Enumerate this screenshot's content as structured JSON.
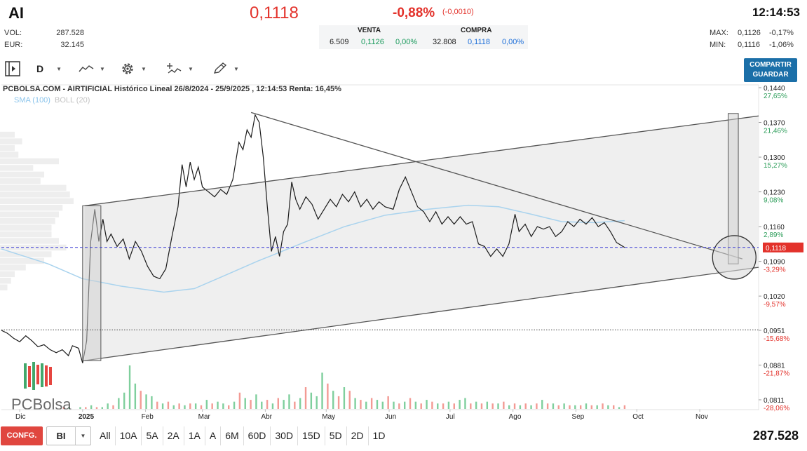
{
  "header": {
    "ticker": "AI",
    "price": "0,1118",
    "change_pct": "-0,88%",
    "change_abs": "(-0,0010)",
    "time": "12:14:53",
    "vol_label": "VOL:",
    "vol_value": "287.528",
    "eur_label": "EUR:",
    "eur_value": "32.145"
  },
  "quote": {
    "venta_label": "VENTA",
    "compra_label": "COMPRA",
    "sell_qty": "6.509",
    "sell_price": "0,1126",
    "sell_pct": "0,00%",
    "buy_qty": "32.808",
    "buy_price": "0,1118",
    "buy_pct": "0,00%"
  },
  "range_stats": {
    "max_label": "MAX:",
    "max_value": "0,1126",
    "max_pct": "-0,17%",
    "min_label": "MIN:",
    "min_value": "0,1116",
    "min_pct": "-1,06%"
  },
  "toolbar": {
    "period": "D",
    "share_line1": "COMPARTIR",
    "share_line2": "GUARDAR"
  },
  "chart_title": "PCBOLSA.COM - AIRTIFICIAL Histórico Lineal 26/8/2024 - 25/9/2025 , 12:14:53 Renta: 16,45%",
  "indicators": {
    "sma": "SMA (100)",
    "boll": "BOLL (20)"
  },
  "watermark": "PCBolsa",
  "colors": {
    "price_line": "#1a1a1a",
    "sma": "#a9d3ee",
    "up": "#2e9e5b",
    "down": "#e3322b",
    "channel_fill": "#ececec",
    "current_price_line": "#3b3bd6",
    "current_price_tag": "#e3322b"
  },
  "bottom": {
    "config_label": "CONFG.",
    "interval_value": "BI",
    "ranges": [
      "All",
      "10A",
      "5A",
      "2A",
      "1A",
      "A",
      "6M",
      "60D",
      "30D",
      "15D",
      "5D",
      "2D",
      "1D"
    ],
    "volume_total": "287.528"
  },
  "chart_data": {
    "type": "line",
    "title": "PCBOLSA.COM - AIRTIFICIAL Histórico Lineal 26/8/2024 - 25/9/2025 , 12:14:53 Renta: 16,45%",
    "x_tick_labels": [
      "Dic",
      "2025",
      "Feb",
      "Mar",
      "Abr",
      "May",
      "Jun",
      "Jul",
      "Ago",
      "Sep",
      "Oct",
      "Nov"
    ],
    "y_ticks": [
      {
        "price": "0,1440",
        "pct": "27,65%"
      },
      {
        "price": "0,1370",
        "pct": "21,46%"
      },
      {
        "price": "0,1300",
        "pct": "15,27%"
      },
      {
        "price": "0,1230",
        "pct": "9,08%"
      },
      {
        "price": "0,1160",
        "pct": "2,89%"
      },
      {
        "price": "0,1090",
        "pct": "-3,29%"
      },
      {
        "price": "0,1020",
        "pct": "-9,57%"
      },
      {
        "price": "0,0951",
        "pct": "-15,68%"
      },
      {
        "price": "0,0881",
        "pct": "-21,87%"
      },
      {
        "price": "0,0811",
        "pct": "-28,06%"
      }
    ],
    "ylim": [
      0.0811,
      0.144
    ],
    "xlim": [
      "2024-11-22",
      "2025-11-30"
    ],
    "current_price": 0.1118,
    "current_price_label": "0,1118",
    "reference_price": 0.0952,
    "series": [
      {
        "name": "",
        "points": [
          [
            "2024-11-22",
            0.0951
          ],
          [
            "2024-11-25",
            0.0945
          ],
          [
            "2024-11-28",
            0.0935
          ],
          [
            "2024-12-01",
            0.0928
          ],
          [
            "2024-12-04",
            0.094
          ],
          [
            "2024-12-07",
            0.093
          ],
          [
            "2024-12-10",
            0.0918
          ],
          [
            "2024-12-13",
            0.0922
          ],
          [
            "2024-12-16",
            0.0912
          ],
          [
            "2024-12-19",
            0.0906
          ],
          [
            "2024-12-22",
            0.0912
          ],
          [
            "2024-12-25",
            0.09
          ],
          [
            "2024-12-27",
            0.092
          ],
          [
            "2024-12-30",
            0.0915
          ],
          [
            "2025-01-01",
            0.0885
          ],
          [
            "2025-01-03",
            0.093
          ],
          [
            "2025-01-05",
            0.113
          ],
          [
            "2025-01-07",
            0.1195
          ],
          [
            "2025-01-09",
            0.113
          ],
          [
            "2025-01-11",
            0.1175
          ],
          [
            "2025-01-13",
            0.113
          ],
          [
            "2025-01-15",
            0.1145
          ],
          [
            "2025-01-18",
            0.112
          ],
          [
            "2025-01-21",
            0.1135
          ],
          [
            "2025-01-24",
            0.1095
          ],
          [
            "2025-01-27",
            0.113
          ],
          [
            "2025-01-30",
            0.111
          ],
          [
            "2025-02-02",
            0.108
          ],
          [
            "2025-02-05",
            0.106
          ],
          [
            "2025-02-08",
            0.1055
          ],
          [
            "2025-02-11",
            0.1075
          ],
          [
            "2025-02-14",
            0.114
          ],
          [
            "2025-02-17",
            0.12
          ],
          [
            "2025-02-19",
            0.1285
          ],
          [
            "2025-02-21",
            0.124
          ],
          [
            "2025-02-23",
            0.129
          ],
          [
            "2025-02-25",
            0.1255
          ],
          [
            "2025-02-27",
            0.128
          ],
          [
            "2025-03-01",
            0.124
          ],
          [
            "2025-03-04",
            0.123
          ],
          [
            "2025-03-07",
            0.122
          ],
          [
            "2025-03-10",
            0.1235
          ],
          [
            "2025-03-13",
            0.1225
          ],
          [
            "2025-03-16",
            0.1255
          ],
          [
            "2025-03-19",
            0.133
          ],
          [
            "2025-03-21",
            0.1315
          ],
          [
            "2025-03-23",
            0.1355
          ],
          [
            "2025-03-25",
            0.134
          ],
          [
            "2025-03-27",
            0.1385
          ],
          [
            "2025-03-29",
            0.137
          ],
          [
            "2025-03-31",
            0.13
          ],
          [
            "2025-04-02",
            0.12
          ],
          [
            "2025-04-04",
            0.111
          ],
          [
            "2025-04-06",
            0.114
          ],
          [
            "2025-04-08",
            0.11
          ],
          [
            "2025-04-10",
            0.115
          ],
          [
            "2025-04-12",
            0.1165
          ],
          [
            "2025-04-14",
            0.125
          ],
          [
            "2025-04-16",
            0.1215
          ],
          [
            "2025-04-18",
            0.1195
          ],
          [
            "2025-04-21",
            0.122
          ],
          [
            "2025-04-24",
            0.1205
          ],
          [
            "2025-04-27",
            0.1175
          ],
          [
            "2025-04-30",
            0.1195
          ],
          [
            "2025-05-03",
            0.1215
          ],
          [
            "2025-05-06",
            0.12
          ],
          [
            "2025-05-09",
            0.1225
          ],
          [
            "2025-05-12",
            0.121
          ],
          [
            "2025-05-15",
            0.123
          ],
          [
            "2025-05-18",
            0.12
          ],
          [
            "2025-05-21",
            0.1215
          ],
          [
            "2025-05-24",
            0.1195
          ],
          [
            "2025-05-27",
            0.121
          ],
          [
            "2025-05-30",
            0.12
          ],
          [
            "2025-06-03",
            0.1195
          ],
          [
            "2025-06-06",
            0.1235
          ],
          [
            "2025-06-09",
            0.126
          ],
          [
            "2025-06-12",
            0.123
          ],
          [
            "2025-06-15",
            0.12
          ],
          [
            "2025-06-18",
            0.119
          ],
          [
            "2025-06-21",
            0.117
          ],
          [
            "2025-06-24",
            0.119
          ],
          [
            "2025-06-27",
            0.1165
          ],
          [
            "2025-06-30",
            0.118
          ],
          [
            "2025-07-03",
            0.1165
          ],
          [
            "2025-07-06",
            0.118
          ],
          [
            "2025-07-09",
            0.1165
          ],
          [
            "2025-07-12",
            0.117
          ],
          [
            "2025-07-15",
            0.1125
          ],
          [
            "2025-07-18",
            0.112
          ],
          [
            "2025-07-21",
            0.11
          ],
          [
            "2025-07-24",
            0.1115
          ],
          [
            "2025-07-27",
            0.11
          ],
          [
            "2025-07-30",
            0.1125
          ],
          [
            "2025-08-02",
            0.1185
          ],
          [
            "2025-08-04",
            0.115
          ],
          [
            "2025-08-07",
            0.1165
          ],
          [
            "2025-08-10",
            0.114
          ],
          [
            "2025-08-13",
            0.116
          ],
          [
            "2025-08-16",
            0.1155
          ],
          [
            "2025-08-19",
            0.116
          ],
          [
            "2025-08-22",
            0.114
          ],
          [
            "2025-08-25",
            0.115
          ],
          [
            "2025-08-28",
            0.117
          ],
          [
            "2025-08-31",
            0.116
          ],
          [
            "2025-09-03",
            0.1175
          ],
          [
            "2025-09-06",
            0.1165
          ],
          [
            "2025-09-09",
            0.1178
          ],
          [
            "2025-09-12",
            0.116
          ],
          [
            "2025-09-15",
            0.1168
          ],
          [
            "2025-09-18",
            0.115
          ],
          [
            "2025-09-21",
            0.1128
          ],
          [
            "2025-09-25",
            0.1118
          ]
        ]
      },
      {
        "name": "SMA (100)",
        "points": [
          [
            "2024-11-22",
            0.1115
          ],
          [
            "2024-12-15",
            0.1085
          ],
          [
            "2025-01-01",
            0.1055
          ],
          [
            "2025-01-20",
            0.104
          ],
          [
            "2025-02-10",
            0.1028
          ],
          [
            "2025-02-25",
            0.1035
          ],
          [
            "2025-03-10",
            0.1058
          ],
          [
            "2025-03-28",
            0.109
          ],
          [
            "2025-04-20",
            0.1128
          ],
          [
            "2025-05-10",
            0.116
          ],
          [
            "2025-05-30",
            0.1183
          ],
          [
            "2025-06-20",
            0.1195
          ],
          [
            "2025-07-10",
            0.1203
          ],
          [
            "2025-07-25",
            0.12
          ],
          [
            "2025-08-10",
            0.1185
          ],
          [
            "2025-08-25",
            0.117
          ],
          [
            "2025-09-10",
            0.1168
          ],
          [
            "2025-09-25",
            0.1172
          ]
        ]
      }
    ],
    "trendlines": [
      {
        "name": "channel-upper",
        "points": [
          [
            "2025-01-02",
            0.1202
          ],
          [
            "2025-11-30",
            0.1383
          ]
        ]
      },
      {
        "name": "channel-lower",
        "points": [
          [
            "2025-01-02",
            0.089
          ],
          [
            "2025-11-30",
            0.1078
          ]
        ]
      },
      {
        "name": "downtrend",
        "points": [
          [
            "2025-03-25",
            0.139
          ],
          [
            "2025-11-22",
            0.1095
          ]
        ]
      }
    ],
    "rectangles": [
      {
        "from": "2025-01-01",
        "to": "2025-01-10",
        "top": 0.1202,
        "bottom": 0.089
      },
      {
        "from": "2025-11-15",
        "to": "2025-11-20",
        "top": 0.1388,
        "bottom": 0.1085
      }
    ],
    "circle": {
      "center": [
        "2025-11-18",
        0.1098
      ],
      "label": ""
    },
    "volume_bars": [
      [
        0,
        "up"
      ],
      [
        1,
        "down"
      ],
      [
        1,
        "up"
      ],
      [
        0,
        "down"
      ],
      [
        1,
        "up"
      ],
      [
        1,
        "down"
      ],
      [
        2,
        "up"
      ],
      [
        1,
        "down"
      ],
      [
        1,
        "up"
      ],
      [
        3,
        "up"
      ],
      [
        2,
        "down"
      ],
      [
        6,
        "up"
      ],
      [
        9,
        "up"
      ],
      [
        24,
        "up"
      ],
      [
        14,
        "up"
      ],
      [
        10,
        "down"
      ],
      [
        8,
        "up"
      ],
      [
        7,
        "up"
      ],
      [
        4,
        "down"
      ],
      [
        3,
        "up"
      ],
      [
        4,
        "down"
      ],
      [
        2,
        "up"
      ],
      [
        3,
        "down"
      ],
      [
        2,
        "up"
      ],
      [
        3,
        "down"
      ],
      [
        3,
        "up"
      ],
      [
        2,
        "down"
      ],
      [
        5,
        "up"
      ],
      [
        3,
        "down"
      ],
      [
        4,
        "up"
      ],
      [
        3,
        "up"
      ],
      [
        2,
        "down"
      ],
      [
        4,
        "up"
      ],
      [
        9,
        "down"
      ],
      [
        6,
        "up"
      ],
      [
        5,
        "down"
      ],
      [
        8,
        "up"
      ],
      [
        4,
        "up"
      ],
      [
        5,
        "down"
      ],
      [
        3,
        "up"
      ],
      [
        6,
        "down"
      ],
      [
        5,
        "up"
      ],
      [
        8,
        "up"
      ],
      [
        4,
        "down"
      ],
      [
        6,
        "up"
      ],
      [
        12,
        "down"
      ],
      [
        9,
        "up"
      ],
      [
        7,
        "up"
      ],
      [
        20,
        "up"
      ],
      [
        14,
        "down"
      ],
      [
        10,
        "up"
      ],
      [
        7,
        "down"
      ],
      [
        12,
        "up"
      ],
      [
        10,
        "down"
      ],
      [
        6,
        "up"
      ],
      [
        5,
        "down"
      ],
      [
        4,
        "up"
      ],
      [
        6,
        "down"
      ],
      [
        5,
        "up"
      ],
      [
        4,
        "up"
      ],
      [
        7,
        "down"
      ],
      [
        4,
        "up"
      ],
      [
        3,
        "down"
      ],
      [
        4,
        "up"
      ],
      [
        6,
        "down"
      ],
      [
        4,
        "up"
      ],
      [
        3,
        "down"
      ],
      [
        5,
        "up"
      ],
      [
        4,
        "down"
      ],
      [
        3,
        "up"
      ],
      [
        3,
        "down"
      ],
      [
        4,
        "up"
      ],
      [
        3,
        "down"
      ],
      [
        5,
        "up"
      ],
      [
        6,
        "up"
      ],
      [
        3,
        "down"
      ],
      [
        4,
        "up"
      ],
      [
        3,
        "down"
      ],
      [
        4,
        "up"
      ],
      [
        3,
        "down"
      ],
      [
        3,
        "up"
      ],
      [
        4,
        "down"
      ],
      [
        2,
        "up"
      ],
      [
        3,
        "down"
      ],
      [
        2,
        "up"
      ],
      [
        3,
        "down"
      ],
      [
        2,
        "up"
      ],
      [
        3,
        "down"
      ],
      [
        5,
        "up"
      ],
      [
        3,
        "down"
      ],
      [
        3,
        "up"
      ],
      [
        2,
        "down"
      ],
      [
        3,
        "up"
      ],
      [
        2,
        "down"
      ],
      [
        2,
        "up"
      ],
      [
        2,
        "down"
      ],
      [
        3,
        "up"
      ],
      [
        2,
        "down"
      ],
      [
        2,
        "up"
      ],
      [
        3,
        "down"
      ],
      [
        2,
        "up"
      ],
      [
        2,
        "down"
      ],
      [
        1,
        "up"
      ],
      [
        2,
        "down"
      ]
    ],
    "volume_profile": [
      0.0,
      0.0,
      0.0,
      0.0,
      0.2,
      0.3,
      0.2,
      0.25,
      0.8,
      0.45,
      0.6,
      0.55,
      0.9,
      0.95,
      1.0,
      0.85,
      0.8,
      0.75,
      0.7,
      0.7,
      0.8,
      0.9,
      0.7,
      0.6,
      0.35,
      0.2,
      0.15,
      0.1
    ]
  }
}
